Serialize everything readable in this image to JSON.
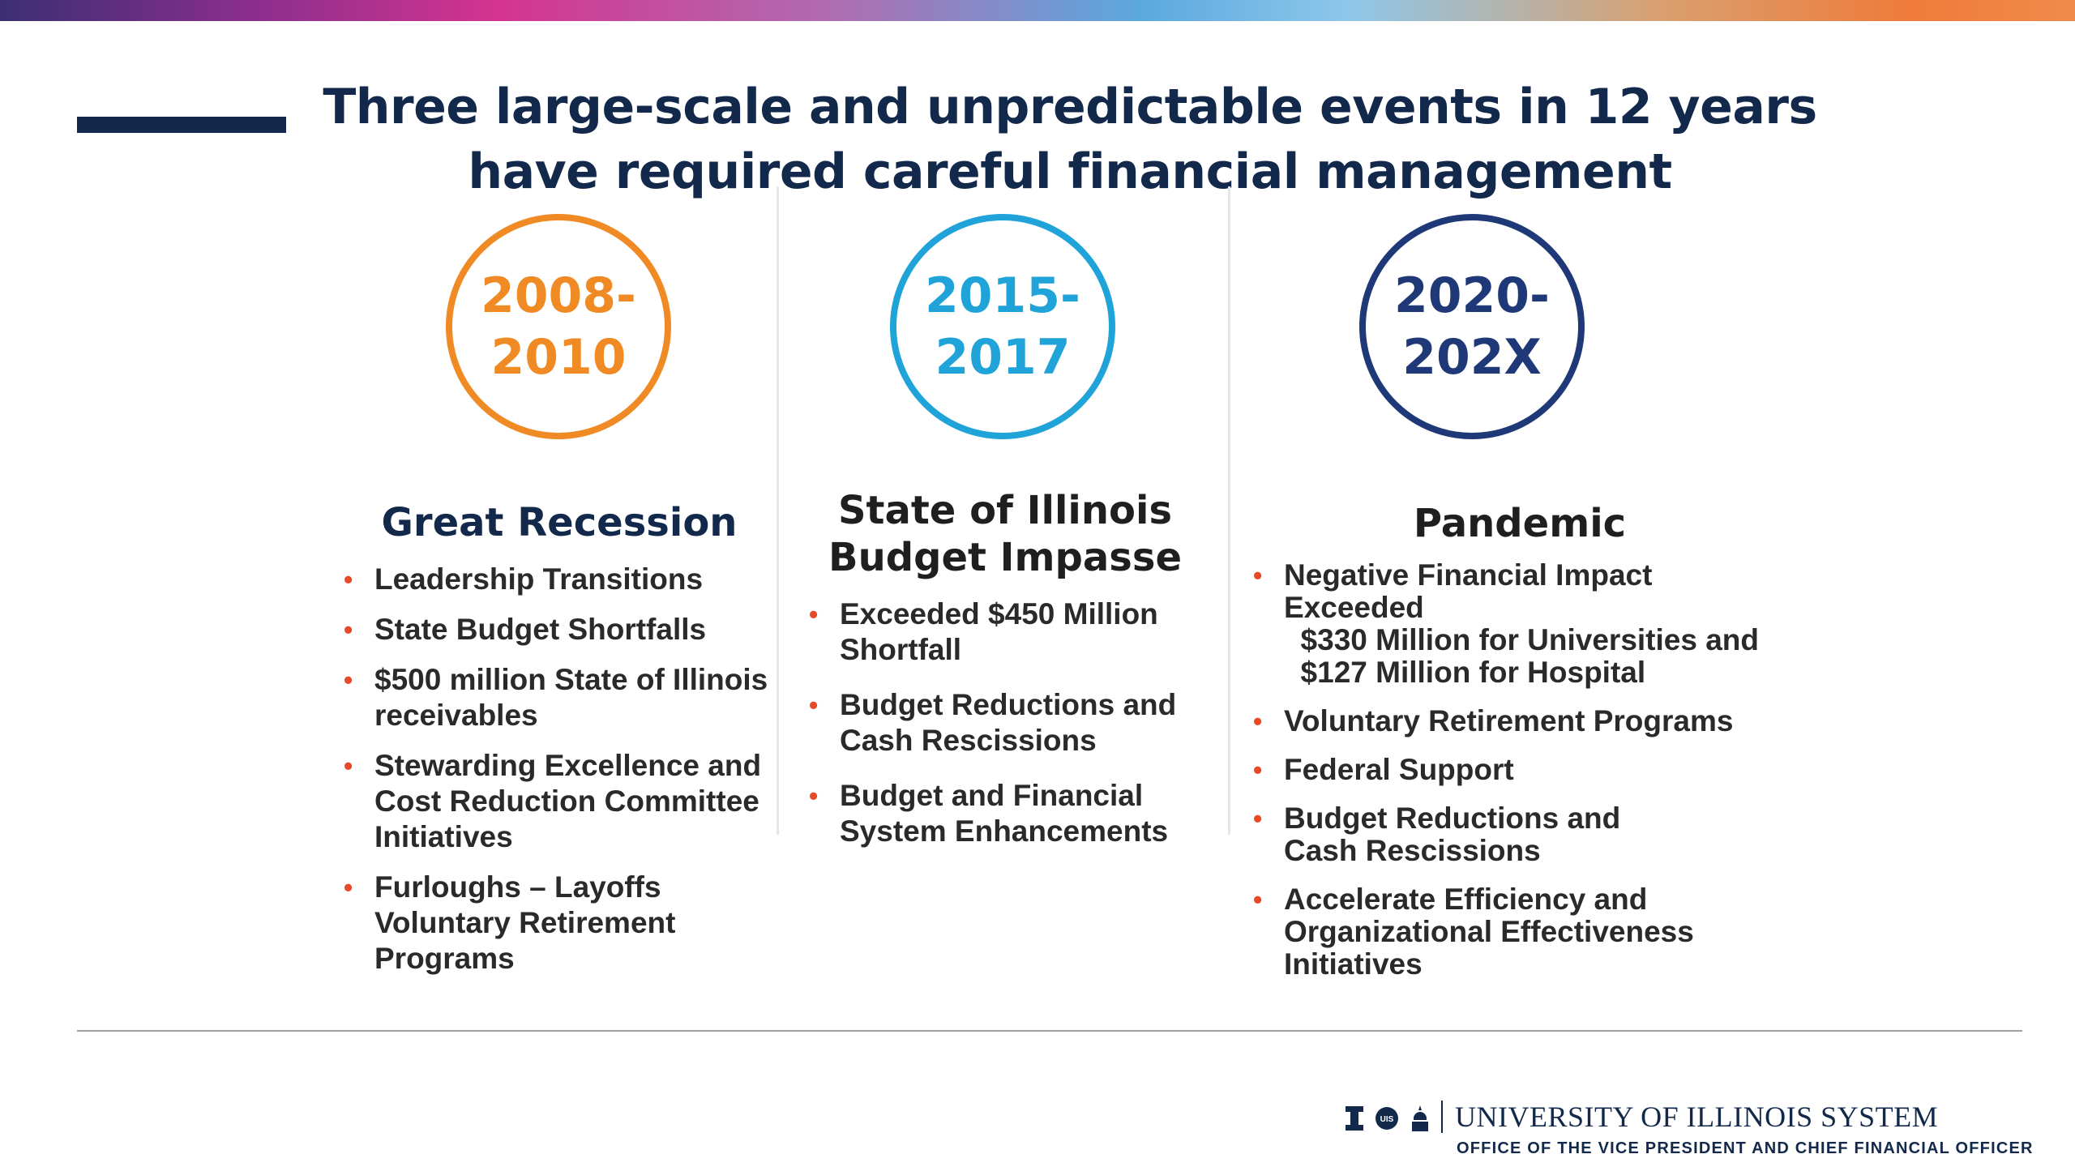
{
  "slide": {
    "title_line1": "Three large-scale and unpredictable events in 12 years",
    "title_line2": "have required careful financial management"
  },
  "columns": [
    {
      "circle_line1": "2008-",
      "circle_line2": "2010",
      "circle_color": "#f08a24",
      "heading_line1": "Great Recession",
      "heading_line2": "",
      "bullets": [
        [
          "Leadership Transitions"
        ],
        [
          "State Budget Shortfalls"
        ],
        [
          "$500 million State of Illinois",
          "receivables"
        ],
        [
          "Stewarding Excellence and",
          "Cost Reduction Committee",
          "Initiatives"
        ],
        [
          "Furloughs – Layoffs",
          "Voluntary Retirement",
          "Programs"
        ]
      ]
    },
    {
      "circle_line1": "2015-",
      "circle_line2": "2017",
      "circle_color": "#1fa3d9",
      "heading_line1": "State of Illinois",
      "heading_line2": "Budget Impasse",
      "bullets": [
        [
          "Exceeded $450 Million",
          "Shortfall"
        ],
        [
          "Budget Reductions and",
          "Cash Rescissions"
        ],
        [
          "Budget and Financial",
          "System Enhancements"
        ]
      ]
    },
    {
      "circle_line1": "2020-",
      "circle_line2": "202X",
      "circle_color": "#1f3978",
      "heading_line1": "Pandemic",
      "heading_line2": "",
      "bullets": [
        [
          "Negative Financial Impact",
          "Exceeded",
          "  $330 Million for Universities and",
          "  $127 Million for Hospital"
        ],
        [
          "Voluntary Retirement Programs"
        ],
        [
          "Federal Support"
        ],
        [
          "Budget Reductions and",
          "Cash Rescissions"
        ],
        [
          "Accelerate Efficiency and",
          "Organizational Effectiveness",
          "Initiatives"
        ]
      ]
    }
  ],
  "footer": {
    "system_name": "UNIVERSITY OF ILLINOIS SYSTEM",
    "office_name": "OFFICE OF THE VICE PRESIDENT AND CHIEF FINANCIAL OFFICER",
    "logo_icons": [
      "block-i-icon",
      "uis-seal-icon",
      "uic-dome-icon"
    ],
    "uic_seal_text": "UIS",
    "accent_bullet_color": "#e84a27",
    "navy": "#13294b"
  }
}
